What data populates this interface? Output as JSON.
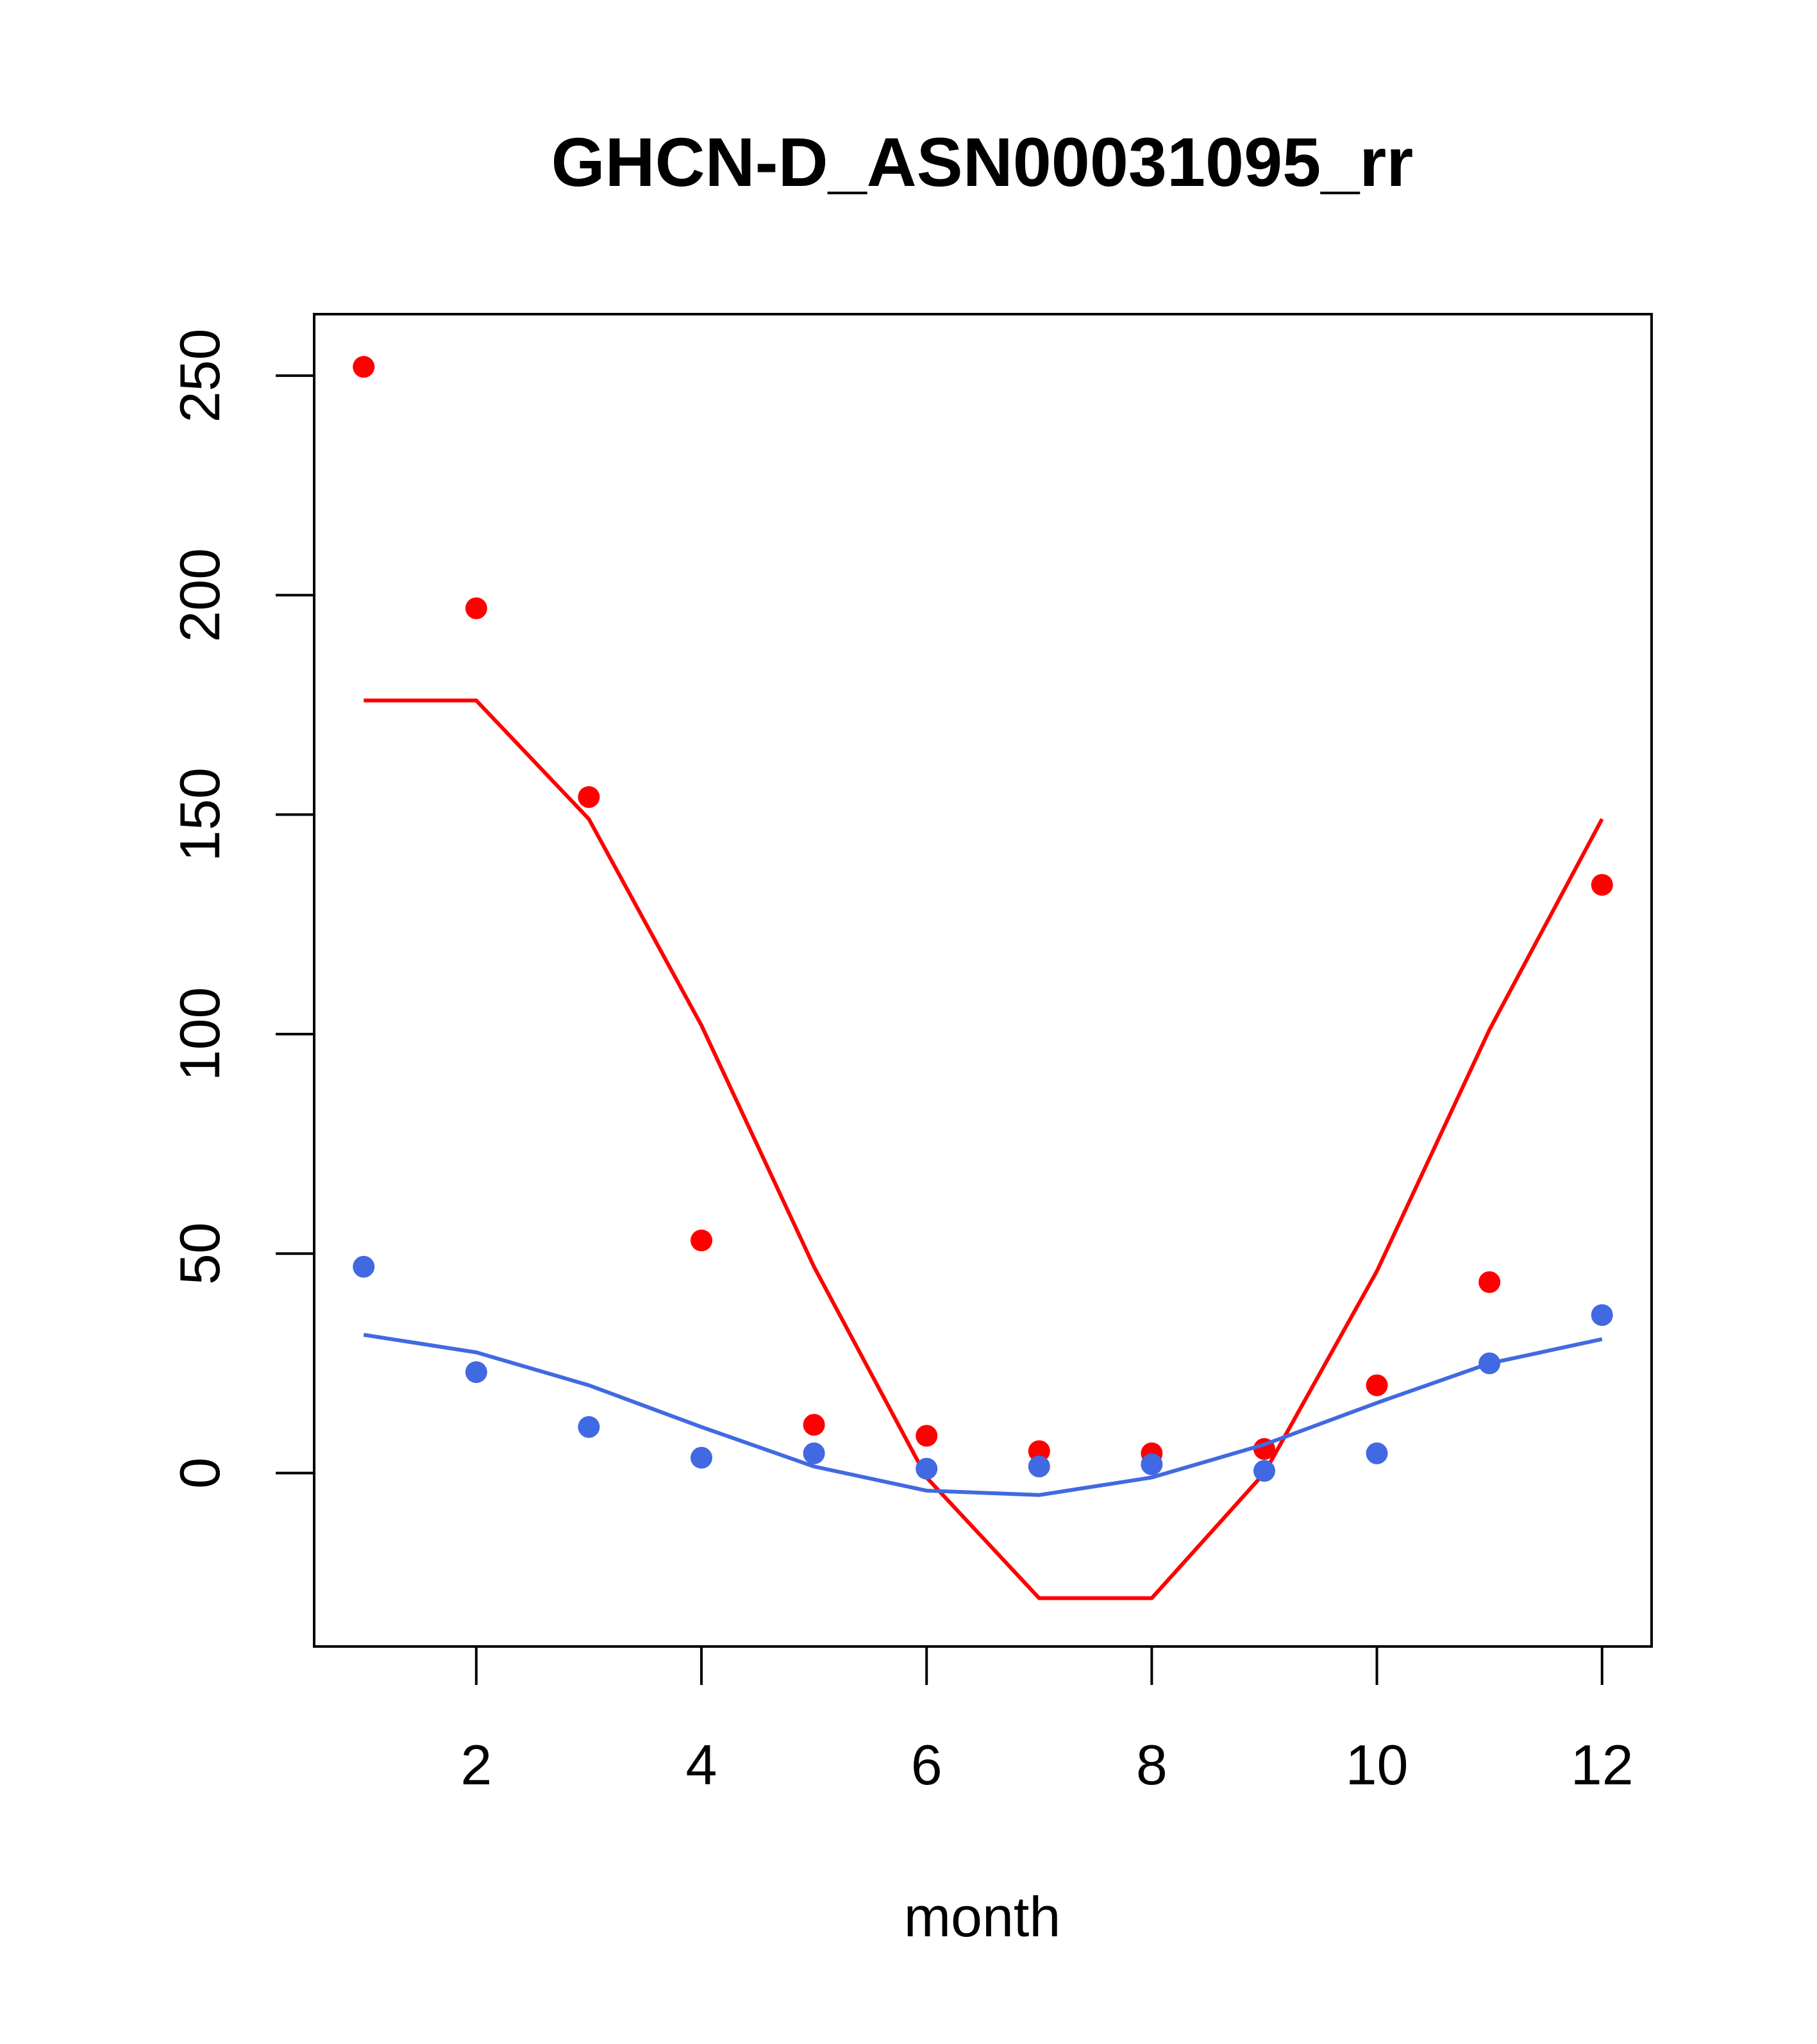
{
  "chart_data": {
    "type": "scatter",
    "title": "GHCN-D_ASN00031095_rr",
    "xlabel": "month",
    "ylabel": "",
    "xlim": [
      0.56,
      12.44
    ],
    "ylim": [
      -39.5,
      264
    ],
    "x_ticks": [
      2,
      4,
      6,
      8,
      10,
      12
    ],
    "y_ticks": [
      0,
      50,
      100,
      150,
      200,
      250
    ],
    "grid": false,
    "legend": "none",
    "x": [
      1,
      2,
      3,
      4,
      5,
      6,
      7,
      8,
      9,
      10,
      11,
      12
    ],
    "series": [
      {
        "color": "#ff0000",
        "points": [
          252,
          197,
          154,
          53,
          11,
          8.5,
          5,
          4.5,
          5.5,
          20,
          43.5,
          134
        ],
        "line": [
          176,
          176,
          149,
          102,
          47,
          -1,
          -28.5,
          -28.5,
          0,
          46,
          101,
          149
        ]
      },
      {
        "color": "#4169e1",
        "points": [
          47,
          23,
          10.5,
          3.5,
          4.5,
          1,
          1.5,
          2,
          0.5,
          4.5,
          25,
          36
        ],
        "line": [
          31.5,
          27.5,
          20,
          10.5,
          1.5,
          -4,
          -5,
          -1,
          6.5,
          16,
          25,
          30.5
        ]
      }
    ]
  }
}
